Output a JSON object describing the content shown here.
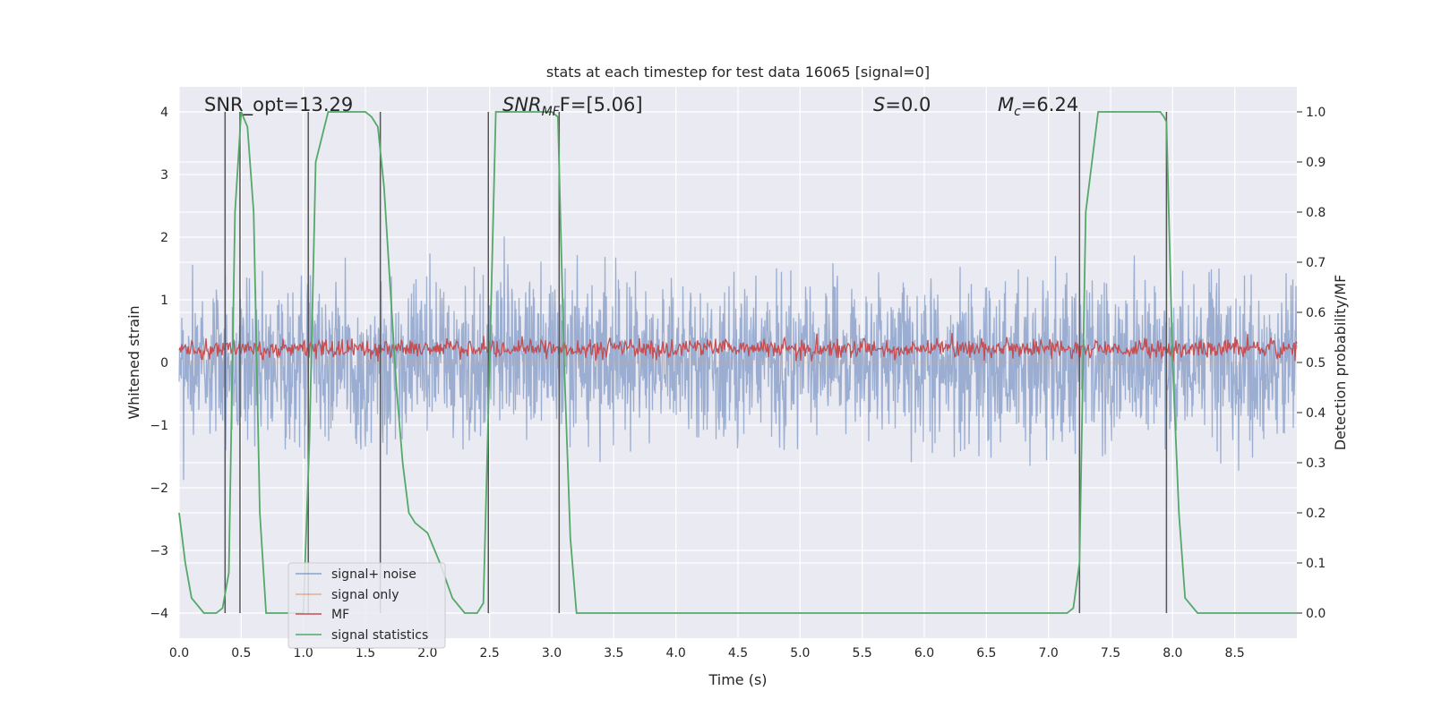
{
  "chart_data": {
    "type": "line",
    "title": "stats at each timestep for test data 16065 [signal=0]",
    "xlabel": "Time (s)",
    "ylabel": "Whitened strain",
    "y2label": "Detection probability/MF",
    "xlim": [
      0.0,
      9.0
    ],
    "ylim": [
      -4.4,
      4.4
    ],
    "y2lim": [
      -0.05,
      1.05
    ],
    "grid": true,
    "legend_position": "lower-left",
    "x_ticks": [
      0.0,
      0.5,
      1.0,
      1.5,
      2.0,
      2.5,
      3.0,
      3.5,
      4.0,
      4.5,
      5.0,
      5.5,
      6.0,
      6.5,
      7.0,
      7.5,
      8.0,
      8.5
    ],
    "x_tick_labels": [
      "0.0",
      "0.5",
      "1.0",
      "1.5",
      "2.0",
      "2.5",
      "3.0",
      "3.5",
      "4.0",
      "4.5",
      "5.0",
      "5.5",
      "6.0",
      "6.5",
      "7.0",
      "7.5",
      "8.0",
      "8.5"
    ],
    "y_ticks": [
      4,
      3,
      2,
      1,
      0,
      -1,
      -2,
      -3,
      -4
    ],
    "y_tick_labels": [
      "4",
      "3",
      "2",
      "1",
      "0",
      "−1",
      "−2",
      "−3",
      "−4"
    ],
    "y2_ticks": [
      1.0,
      0.9,
      0.8,
      0.7,
      0.6,
      0.5,
      0.4,
      0.3,
      0.2,
      0.1,
      0.0
    ],
    "y2_tick_labels": [
      "1.0",
      "0.9",
      "0.8",
      "0.7",
      "0.6",
      "0.5",
      "0.4",
      "0.3",
      "0.2",
      "0.1",
      "0.0"
    ],
    "annotations": {
      "snr_opt": "SNR_opt=13.29",
      "snr_mf_main": "SNR",
      "snr_mf_sub": "MF",
      "snr_mf_rest": "F=[5.06]",
      "s_main": "S",
      "s_rest": "=0.0",
      "mc_main": "M",
      "mc_sub": "c",
      "mc_rest": "=6.24"
    },
    "vertical_lines": [
      0.37,
      0.49,
      1.04,
      1.62,
      2.49,
      3.06,
      7.25,
      7.95
    ],
    "series": [
      {
        "name": "signal+ noise",
        "color": "#4c72b0",
        "axis": "left",
        "kind": "noise",
        "typical_amplitude": 1.6,
        "max_excursion": 4.0
      },
      {
        "name": "signal only",
        "color": "#dd8452",
        "axis": "left",
        "kind": "flat",
        "values": []
      },
      {
        "name": "MF",
        "color": "#c44e52",
        "axis": "left",
        "kind": "noise",
        "center": 0.22,
        "typical_amplitude": 0.2
      },
      {
        "name": "signal statistics",
        "color": "#55a868",
        "axis": "right",
        "x": [
          0.0,
          0.05,
          0.1,
          0.2,
          0.3,
          0.35,
          0.4,
          0.45,
          0.5,
          0.55,
          0.6,
          0.65,
          0.7,
          0.8,
          0.9,
          1.0,
          1.05,
          1.1,
          1.2,
          1.3,
          1.4,
          1.5,
          1.55,
          1.6,
          1.65,
          1.7,
          1.75,
          1.8,
          1.85,
          1.9,
          1.95,
          2.0,
          2.1,
          2.2,
          2.3,
          2.4,
          2.45,
          2.5,
          2.55,
          2.6,
          2.8,
          3.0,
          3.05,
          3.1,
          3.15,
          3.2,
          3.3,
          3.5,
          4.0,
          5.0,
          6.0,
          7.0,
          7.15,
          7.2,
          7.25,
          7.3,
          7.4,
          7.6,
          7.8,
          7.9,
          7.93,
          7.95,
          8.0,
          8.05,
          8.1,
          8.2,
          8.5,
          9.0
        ],
        "values": [
          0.2,
          0.1,
          0.03,
          0.0,
          0.0,
          0.01,
          0.08,
          0.8,
          1.0,
          0.97,
          0.8,
          0.2,
          0.0,
          0.0,
          0.0,
          0.0,
          0.35,
          0.9,
          1.0,
          1.0,
          1.0,
          1.0,
          0.99,
          0.97,
          0.85,
          0.65,
          0.45,
          0.3,
          0.2,
          0.18,
          0.17,
          0.16,
          0.1,
          0.03,
          0.0,
          0.0,
          0.02,
          0.5,
          1.0,
          1.0,
          1.0,
          1.0,
          0.99,
          0.5,
          0.15,
          0.0,
          0.0,
          0.0,
          0.0,
          0.0,
          0.0,
          0.0,
          0.0,
          0.01,
          0.1,
          0.8,
          1.0,
          1.0,
          1.0,
          1.0,
          0.99,
          0.98,
          0.5,
          0.2,
          0.03,
          0.0,
          0.0,
          0.0
        ]
      }
    ]
  }
}
